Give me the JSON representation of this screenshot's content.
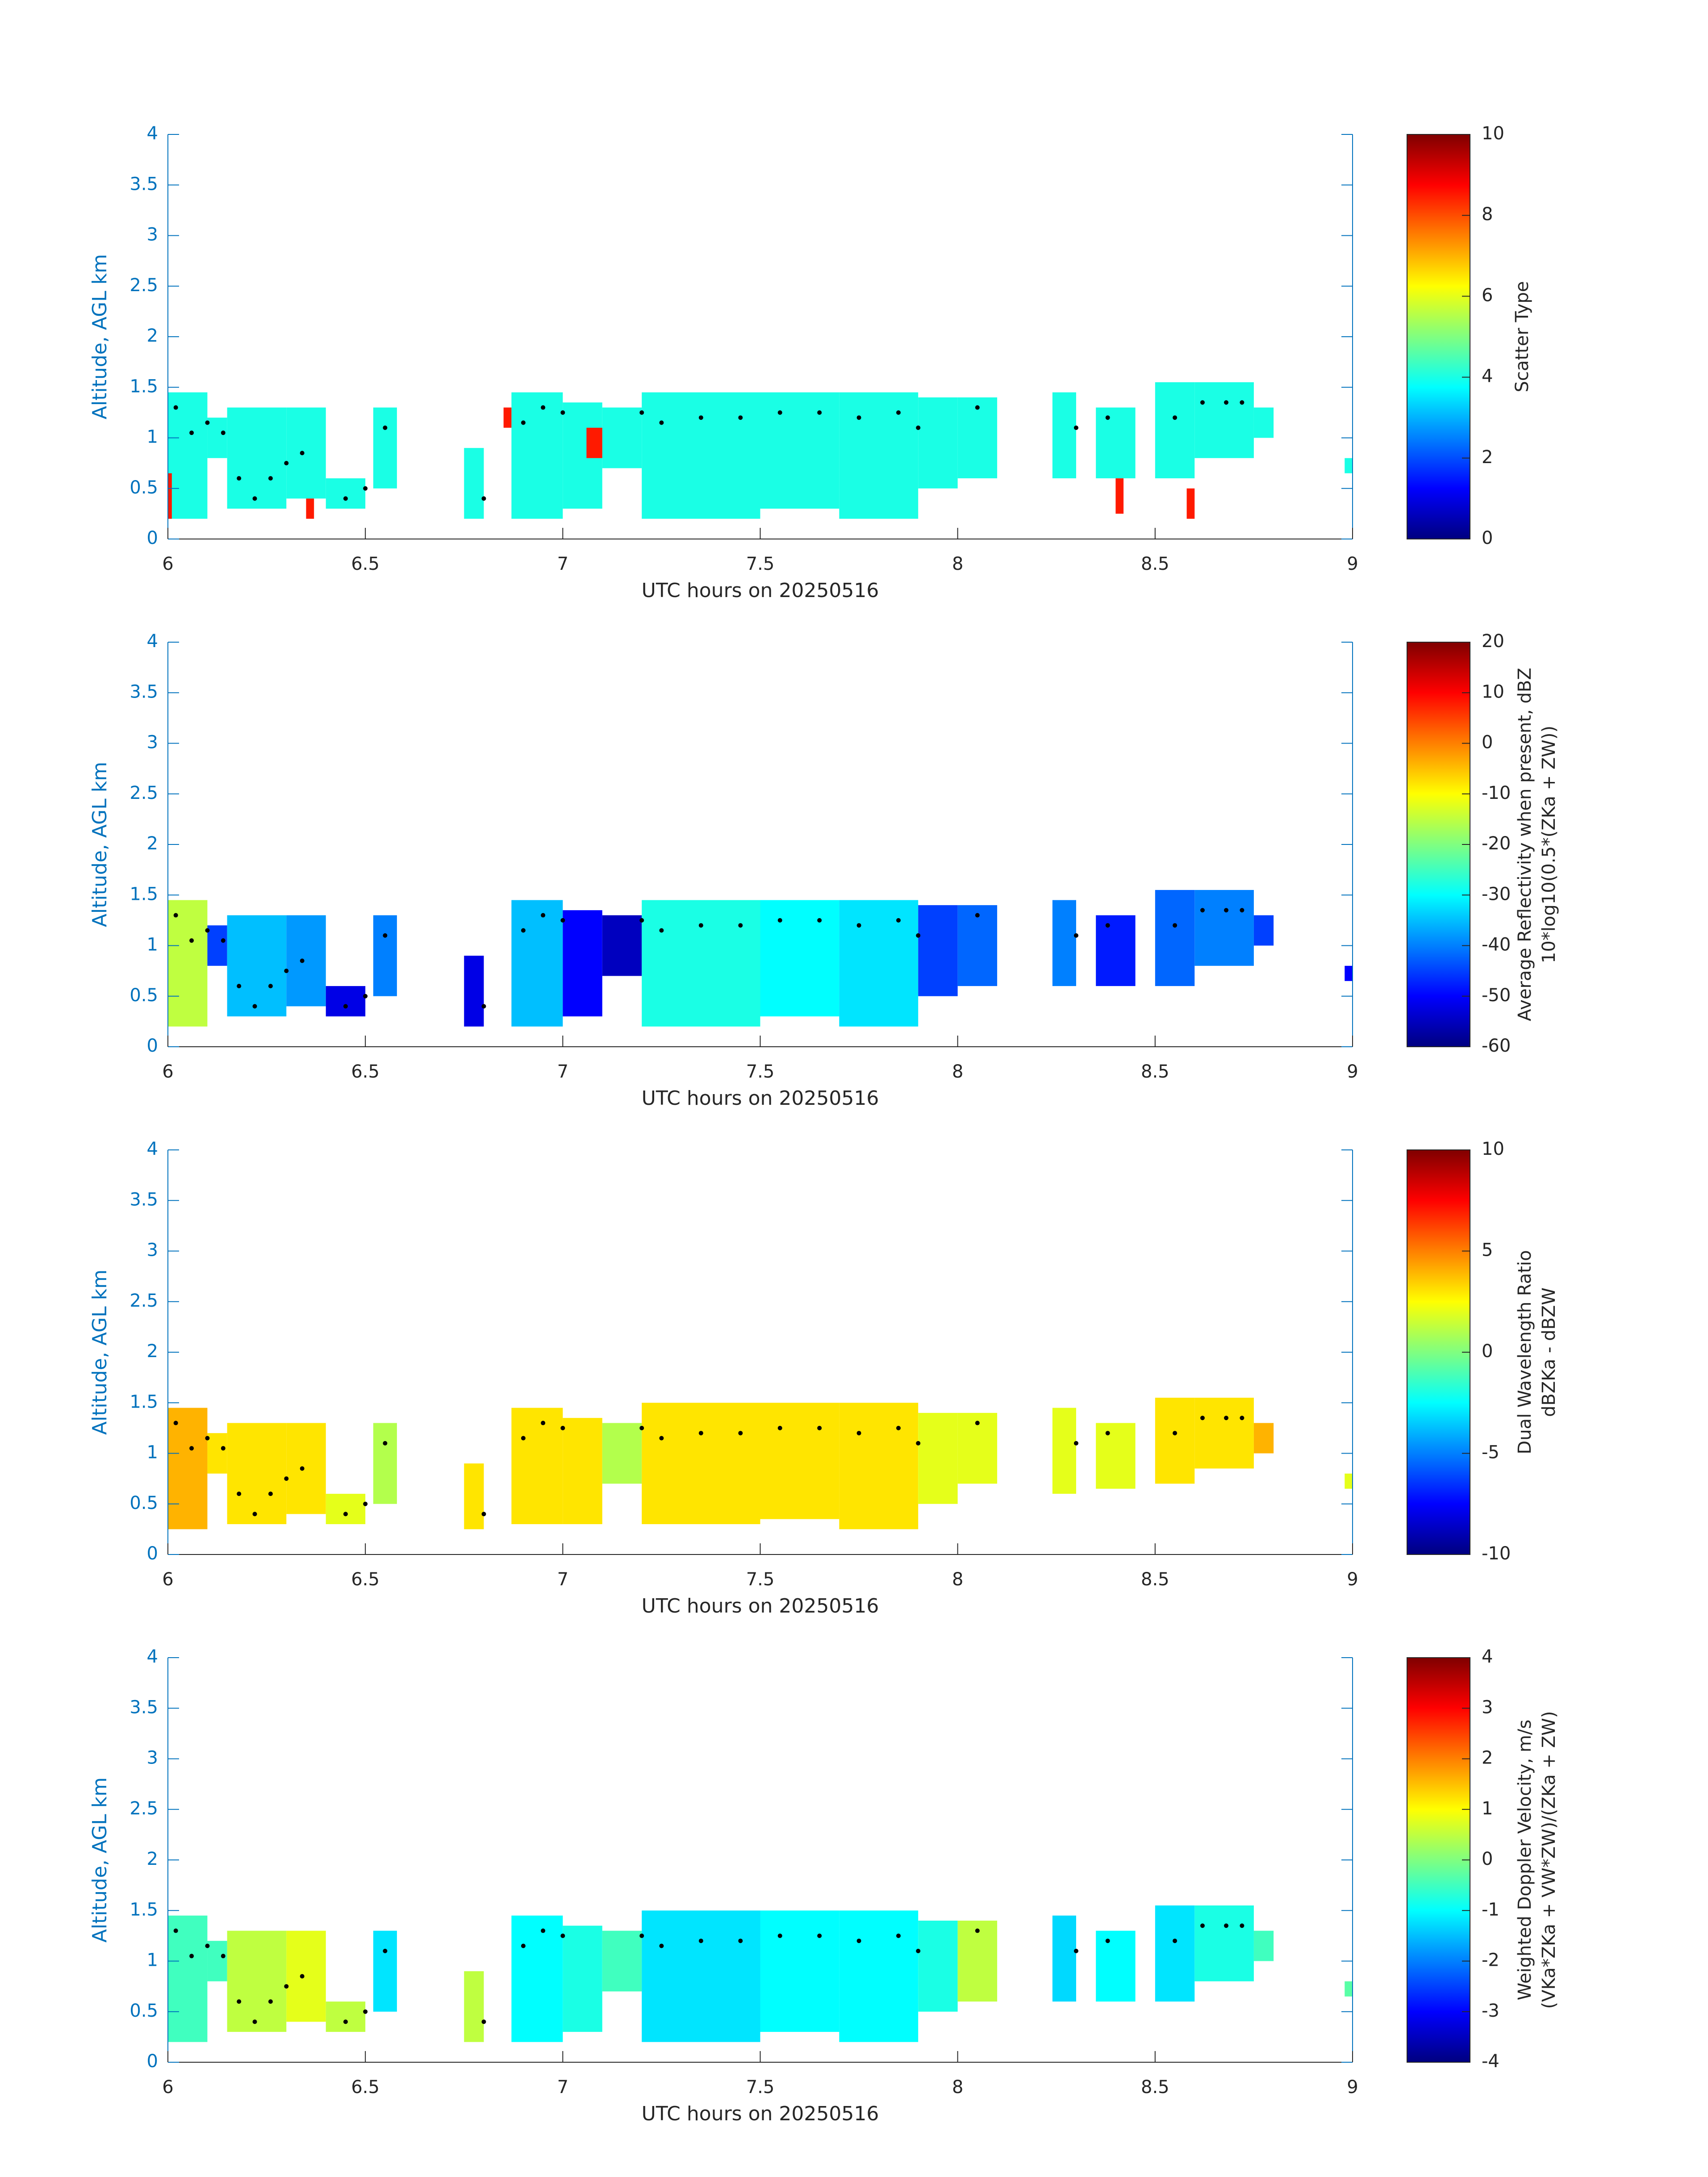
{
  "chart_data": [
    {
      "type": "heatmap",
      "xlabel": "UTC hours on 20250516",
      "ylabel": "Altitude, AGL km",
      "xlim": [
        6,
        9
      ],
      "xticks": [
        6,
        6.5,
        7,
        7.5,
        8,
        8.5,
        9
      ],
      "ylim": [
        0,
        4
      ],
      "yticks": [
        0,
        0.5,
        1,
        1.5,
        2,
        2.5,
        3,
        3.5,
        4
      ],
      "colormap": "jet",
      "clim": [
        0,
        10
      ],
      "cticks": [
        0,
        2,
        4,
        6,
        8,
        10
      ],
      "clabel": [
        "Scatter Type"
      ],
      "x0": [
        6.0,
        6.1,
        6.15,
        6.3,
        6.4,
        6.52,
        6.75,
        6.87,
        7.0,
        7.1,
        7.2,
        7.5,
        7.7,
        7.9,
        8.0,
        8.24,
        8.35,
        8.5,
        8.6,
        8.75,
        8.98,
        6.0,
        6.35,
        6.85,
        7.06,
        8.4,
        8.58
      ],
      "x1": [
        6.1,
        6.15,
        6.3,
        6.4,
        6.5,
        6.58,
        6.8,
        7.0,
        7.1,
        7.2,
        7.5,
        7.7,
        7.9,
        8.0,
        8.1,
        8.3,
        8.45,
        8.6,
        8.75,
        8.8,
        9.0,
        6.01,
        6.37,
        6.87,
        7.1,
        8.42,
        8.6
      ],
      "y0": [
        0.2,
        0.8,
        0.3,
        0.4,
        0.3,
        0.5,
        0.2,
        0.2,
        0.3,
        0.7,
        0.2,
        0.3,
        0.2,
        0.5,
        0.6,
        0.6,
        0.6,
        0.6,
        0.8,
        1.0,
        0.65,
        0.2,
        0.2,
        1.1,
        0.8,
        0.25,
        0.2
      ],
      "y1": [
        1.45,
        1.2,
        1.3,
        1.3,
        0.6,
        1.3,
        0.9,
        1.45,
        1.35,
        1.3,
        1.45,
        1.45,
        1.45,
        1.4,
        1.4,
        1.45,
        1.3,
        1.55,
        1.55,
        1.3,
        0.8,
        0.65,
        0.4,
        1.3,
        1.1,
        0.6,
        0.5
      ],
      "values": [
        4,
        4,
        4,
        4,
        4,
        4,
        4,
        4,
        4,
        4,
        4,
        4,
        4,
        4,
        4,
        4,
        4,
        4,
        4,
        4,
        4,
        8.5,
        8.5,
        8.5,
        8.5,
        8.5,
        8.5
      ],
      "markers": {
        "color": "#000000",
        "x": [
          6.02,
          6.06,
          6.1,
          6.14,
          6.18,
          6.22,
          6.26,
          6.3,
          6.34,
          6.45,
          6.5,
          6.55,
          6.8,
          6.9,
          6.95,
          7.0,
          7.2,
          7.25,
          7.35,
          7.45,
          7.55,
          7.65,
          7.75,
          7.85,
          7.9,
          8.05,
          8.3,
          8.38,
          8.55,
          8.62,
          8.68,
          8.72
        ],
        "y": [
          1.3,
          1.05,
          1.15,
          1.05,
          0.6,
          0.4,
          0.6,
          0.75,
          0.85,
          0.4,
          0.5,
          1.1,
          0.4,
          1.15,
          1.3,
          1.25,
          1.25,
          1.15,
          1.2,
          1.2,
          1.25,
          1.25,
          1.2,
          1.25,
          1.1,
          1.3,
          1.1,
          1.2,
          1.2,
          1.35,
          1.35,
          1.35
        ]
      }
    },
    {
      "type": "heatmap",
      "xlabel": "UTC hours on 20250516",
      "ylabel": "Altitude, AGL km",
      "xlim": [
        6,
        9
      ],
      "xticks": [
        6,
        6.5,
        7,
        7.5,
        8,
        8.5,
        9
      ],
      "ylim": [
        0,
        4
      ],
      "yticks": [
        0,
        0.5,
        1,
        1.5,
        2,
        2.5,
        3,
        3.5,
        4
      ],
      "colormap": "jet",
      "clim": [
        -60,
        20
      ],
      "cticks": [
        -60,
        -50,
        -40,
        -30,
        -20,
        -10,
        0,
        10,
        20
      ],
      "clabel": [
        "Average Reflectivity when present, dBZ",
        "10*log10(0.5*(ZKa + ZW))"
      ],
      "x0": [
        6.0,
        6.1,
        6.15,
        6.3,
        6.4,
        6.52,
        6.75,
        6.87,
        7.0,
        7.1,
        7.2,
        7.5,
        7.7,
        7.9,
        8.0,
        8.24,
        8.35,
        8.5,
        8.6,
        8.75,
        8.98
      ],
      "x1": [
        6.1,
        6.15,
        6.3,
        6.4,
        6.5,
        6.58,
        6.8,
        7.0,
        7.1,
        7.2,
        7.5,
        7.7,
        7.9,
        8.0,
        8.1,
        8.3,
        8.45,
        8.6,
        8.75,
        8.8,
        9.0
      ],
      "y0": [
        0.2,
        0.8,
        0.3,
        0.4,
        0.3,
        0.5,
        0.2,
        0.2,
        0.3,
        0.7,
        0.2,
        0.3,
        0.2,
        0.5,
        0.6,
        0.6,
        0.6,
        0.6,
        0.8,
        1.0,
        0.65
      ],
      "y1": [
        1.45,
        1.2,
        1.3,
        1.3,
        0.6,
        1.3,
        0.9,
        1.45,
        1.35,
        1.3,
        1.45,
        1.45,
        1.45,
        1.4,
        1.4,
        1.45,
        1.3,
        1.55,
        1.55,
        1.3,
        0.8
      ],
      "values": [
        -15,
        -45,
        -35,
        -38,
        -52,
        -40,
        -52,
        -35,
        -50,
        -55,
        -28,
        -30,
        -32,
        -45,
        -42,
        -40,
        -48,
        -42,
        -40,
        -45,
        -50
      ],
      "markers": {
        "color": "#000000",
        "x": [
          6.02,
          6.06,
          6.1,
          6.14,
          6.18,
          6.22,
          6.26,
          6.3,
          6.34,
          6.45,
          6.5,
          6.55,
          6.8,
          6.9,
          6.95,
          7.0,
          7.2,
          7.25,
          7.35,
          7.45,
          7.55,
          7.65,
          7.75,
          7.85,
          7.9,
          8.05,
          8.3,
          8.38,
          8.55,
          8.62,
          8.68,
          8.72
        ],
        "y": [
          1.3,
          1.05,
          1.15,
          1.05,
          0.6,
          0.4,
          0.6,
          0.75,
          0.85,
          0.4,
          0.5,
          1.1,
          0.4,
          1.15,
          1.3,
          1.25,
          1.25,
          1.15,
          1.2,
          1.2,
          1.25,
          1.25,
          1.2,
          1.25,
          1.1,
          1.3,
          1.1,
          1.2,
          1.2,
          1.35,
          1.35,
          1.35
        ]
      }
    },
    {
      "type": "heatmap",
      "xlabel": "UTC hours on 20250516",
      "ylabel": "Altitude, AGL km",
      "xlim": [
        6,
        9
      ],
      "xticks": [
        6,
        6.5,
        7,
        7.5,
        8,
        8.5,
        9
      ],
      "ylim": [
        0,
        4
      ],
      "yticks": [
        0,
        0.5,
        1,
        1.5,
        2,
        2.5,
        3,
        3.5,
        4
      ],
      "colormap": "jet",
      "clim": [
        -10,
        10
      ],
      "cticks": [
        -10,
        -5,
        0,
        5,
        10
      ],
      "clabel": [
        "Dual Wavelength Ratio",
        "dBZKa - dBZW"
      ],
      "x0": [
        6.0,
        6.1,
        6.15,
        6.3,
        6.4,
        6.52,
        6.75,
        6.87,
        7.0,
        7.1,
        7.2,
        7.5,
        7.7,
        7.9,
        8.0,
        8.24,
        8.35,
        8.5,
        8.6,
        8.75,
        8.98
      ],
      "x1": [
        6.1,
        6.15,
        6.3,
        6.4,
        6.5,
        6.58,
        6.8,
        7.0,
        7.1,
        7.2,
        7.5,
        7.7,
        7.9,
        8.0,
        8.1,
        8.3,
        8.45,
        8.6,
        8.75,
        8.8,
        9.0
      ],
      "y0": [
        0.25,
        0.8,
        0.3,
        0.4,
        0.3,
        0.5,
        0.25,
        0.3,
        0.3,
        0.7,
        0.3,
        0.35,
        0.25,
        0.5,
        0.7,
        0.6,
        0.65,
        0.7,
        0.85,
        1.0,
        0.65
      ],
      "y1": [
        1.45,
        1.2,
        1.3,
        1.3,
        0.6,
        1.3,
        0.9,
        1.45,
        1.35,
        1.3,
        1.5,
        1.5,
        1.5,
        1.4,
        1.4,
        1.45,
        1.3,
        1.55,
        1.55,
        1.3,
        0.8
      ],
      "values": [
        4,
        3,
        3,
        3,
        2,
        1,
        3,
        3,
        3,
        1,
        3,
        3,
        3,
        2,
        2,
        2,
        2,
        3,
        3,
        4,
        2
      ],
      "markers": {
        "color": "#000000",
        "x": [
          6.02,
          6.06,
          6.1,
          6.14,
          6.18,
          6.22,
          6.26,
          6.3,
          6.34,
          6.45,
          6.5,
          6.55,
          6.8,
          6.9,
          6.95,
          7.0,
          7.2,
          7.25,
          7.35,
          7.45,
          7.55,
          7.65,
          7.75,
          7.85,
          7.9,
          8.05,
          8.3,
          8.38,
          8.55,
          8.62,
          8.68,
          8.72
        ],
        "y": [
          1.3,
          1.05,
          1.15,
          1.05,
          0.6,
          0.4,
          0.6,
          0.75,
          0.85,
          0.4,
          0.5,
          1.1,
          0.4,
          1.15,
          1.3,
          1.25,
          1.25,
          1.15,
          1.2,
          1.2,
          1.25,
          1.25,
          1.2,
          1.25,
          1.1,
          1.3,
          1.1,
          1.2,
          1.2,
          1.35,
          1.35,
          1.35
        ]
      }
    },
    {
      "type": "heatmap",
      "xlabel": "UTC hours on 20250516",
      "ylabel": "Altitude, AGL km",
      "xlim": [
        6,
        9
      ],
      "xticks": [
        6,
        6.5,
        7,
        7.5,
        8,
        8.5,
        9
      ],
      "ylim": [
        0,
        4
      ],
      "yticks": [
        0,
        0.5,
        1,
        1.5,
        2,
        2.5,
        3,
        3.5,
        4
      ],
      "colormap": "jet",
      "clim": [
        -4,
        4
      ],
      "cticks": [
        -4,
        -3,
        -2,
        -1,
        0,
        1,
        2,
        3,
        4
      ],
      "clabel": [
        "Weighted Doppler Velocity, m/s",
        "(VKa*ZKa + VW*ZW)/(ZKa + ZW)"
      ],
      "x0": [
        6.0,
        6.1,
        6.15,
        6.3,
        6.4,
        6.52,
        6.75,
        6.87,
        7.0,
        7.1,
        7.2,
        7.5,
        7.7,
        7.9,
        8.0,
        8.24,
        8.35,
        8.5,
        8.6,
        8.75,
        8.98
      ],
      "x1": [
        6.1,
        6.15,
        6.3,
        6.4,
        6.5,
        6.58,
        6.8,
        7.0,
        7.1,
        7.2,
        7.5,
        7.7,
        7.9,
        8.0,
        8.1,
        8.3,
        8.45,
        8.6,
        8.75,
        8.8,
        9.0
      ],
      "y0": [
        0.2,
        0.8,
        0.3,
        0.4,
        0.3,
        0.5,
        0.2,
        0.2,
        0.3,
        0.7,
        0.2,
        0.3,
        0.2,
        0.5,
        0.6,
        0.6,
        0.6,
        0.6,
        0.8,
        1.0,
        0.65
      ],
      "y1": [
        1.45,
        1.2,
        1.3,
        1.3,
        0.6,
        1.3,
        0.9,
        1.45,
        1.35,
        1.3,
        1.5,
        1.5,
        1.5,
        1.4,
        1.4,
        1.45,
        1.3,
        1.55,
        1.55,
        1.3,
        0.8
      ],
      "values": [
        -0.5,
        -0.5,
        0.5,
        0.8,
        0.5,
        -1.2,
        0.5,
        -1,
        -0.8,
        -0.5,
        -1.2,
        -1,
        -1,
        -0.8,
        0.5,
        -1.3,
        -1,
        -1.2,
        -0.8,
        -0.5,
        -0.3
      ],
      "markers": {
        "color": "#000000",
        "x": [
          6.02,
          6.06,
          6.1,
          6.14,
          6.18,
          6.22,
          6.26,
          6.3,
          6.34,
          6.45,
          6.5,
          6.55,
          6.8,
          6.9,
          6.95,
          7.0,
          7.2,
          7.25,
          7.35,
          7.45,
          7.55,
          7.65,
          7.75,
          7.85,
          7.9,
          8.05,
          8.3,
          8.38,
          8.55,
          8.62,
          8.68,
          8.72
        ],
        "y": [
          1.3,
          1.05,
          1.15,
          1.05,
          0.6,
          0.4,
          0.6,
          0.75,
          0.85,
          0.4,
          0.5,
          1.1,
          0.4,
          1.15,
          1.3,
          1.25,
          1.25,
          1.15,
          1.2,
          1.2,
          1.25,
          1.25,
          1.2,
          1.25,
          1.1,
          1.3,
          1.1,
          1.2,
          1.2,
          1.35,
          1.35,
          1.35
        ]
      }
    }
  ]
}
